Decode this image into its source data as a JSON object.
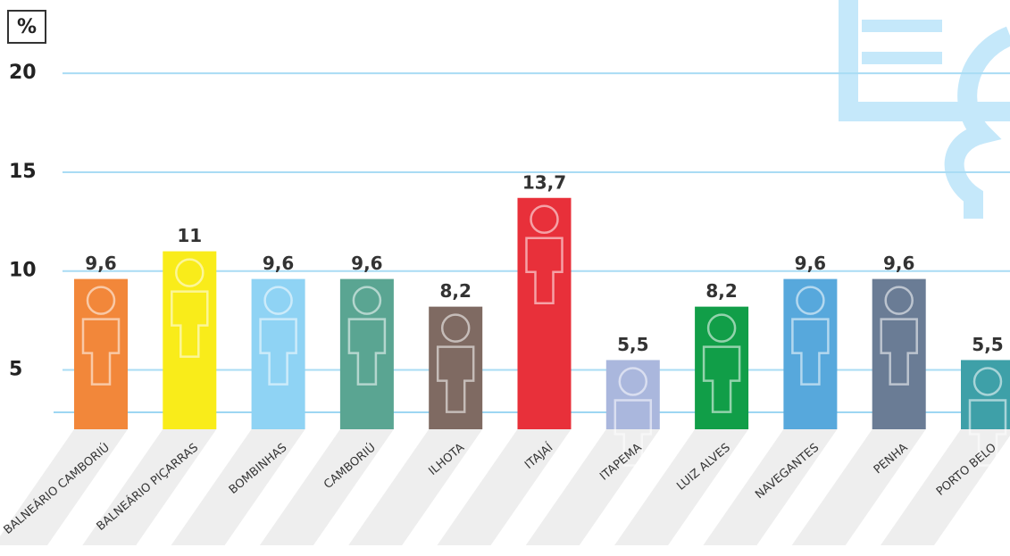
{
  "chart_data": {
    "type": "bar",
    "y_label": "%",
    "categories": [
      "BALNEÁRIO CAMBORIÚ",
      "BALNEÁRIO PIÇARRAS",
      "BOMBINHAS",
      "CAMBORIÚ",
      "ILHOTA",
      "ITAJAÍ",
      "ITAPEMA",
      "LUIZ ALVES",
      "NAVEGANTES",
      "PENHA",
      "PORTO BELO"
    ],
    "values": [
      9.6,
      11,
      9.6,
      9.6,
      8.2,
      13.7,
      5.5,
      8.2,
      9.6,
      9.6,
      5.5
    ],
    "value_labels": [
      "9,6",
      "11",
      "9,6",
      "9,6",
      "8,2",
      "13,7",
      "5,5",
      "8,2",
      "9,6",
      "9,6",
      "5,5"
    ],
    "colors": [
      "#f2873a",
      "#f9ec1a",
      "#8fd3f4",
      "#5aa592",
      "#7f6a62",
      "#e8303a",
      "#aab7dd",
      "#119e48",
      "#57a8dc",
      "#6a7c95",
      "#3ea0a8"
    ],
    "ylim": [
      2,
      21
    ],
    "yticks": [
      5,
      10,
      15,
      20
    ],
    "grid": true
  }
}
